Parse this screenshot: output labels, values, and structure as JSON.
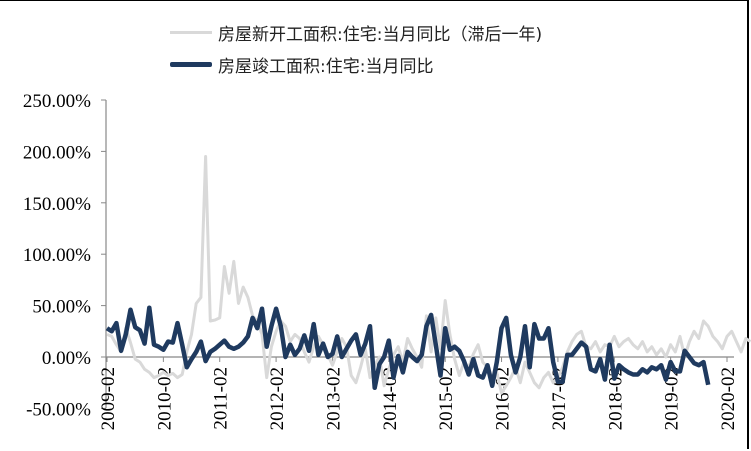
{
  "legend": {
    "series_a": "房屋新开工面积:住宅:当月同比（滞后一年)",
    "series_b": "房屋竣工面积:住宅:当月同比"
  },
  "colors": {
    "series_a": "#d9d9d9",
    "series_b": "#1f3a5f",
    "axis": "#888888"
  },
  "chart_data": {
    "type": "line",
    "title": "",
    "xlabel": "",
    "ylabel": "",
    "ylim": [
      -0.5,
      2.5
    ],
    "y_ticks": [
      "250.00%",
      "200.00%",
      "150.00%",
      "100.00%",
      "50.00%",
      "0.00%",
      "-50.00%"
    ],
    "x_ticks": [
      "2009-02",
      "2010-02",
      "2011-02",
      "2012-02",
      "2013-02",
      "2014-02",
      "2015-02",
      "2016-02",
      "2017-02",
      "2018-02",
      "2019-02",
      "2020-02"
    ],
    "legend_position": "top",
    "grid": false,
    "series": [
      {
        "name": "房屋新开工面积:住宅:当月同比（滞后一年)",
        "start": "2009-02",
        "values": [
          0.22,
          0.2,
          0.12,
          0.05,
          0.28,
          0.14,
          -0.02,
          -0.05,
          -0.12,
          -0.15,
          -0.2,
          -0.18,
          -0.15,
          -0.18,
          -0.16,
          -0.2,
          -0.17,
          0.05,
          0.22,
          0.52,
          0.58,
          1.95,
          0.35,
          0.36,
          0.38,
          0.88,
          0.62,
          0.93,
          0.52,
          0.68,
          0.58,
          0.4,
          0.35,
          0.22,
          -0.2,
          0.1,
          0.25,
          0.35,
          0.3,
          0.15,
          0.22,
          0.18,
          0.05,
          -0.05,
          0.1,
          0.2,
          0.12,
          0.02,
          -0.08,
          0.05,
          0.18,
          0.1,
          -0.18,
          -0.25,
          -0.1,
          0.08,
          -0.2,
          -0.08,
          0.0,
          -0.28,
          -0.12,
          0.02,
          0.1,
          -0.05,
          0.18,
          0.08,
          0.0,
          -0.1,
          0.4,
          0.05,
          0.38,
          0.08,
          0.55,
          0.22,
          -0.02,
          -0.18,
          -0.05,
          -0.1,
          0.03,
          0.12,
          -0.05,
          -0.1,
          -0.2,
          -0.15,
          -0.35,
          -0.28,
          -0.2,
          -0.1,
          -0.25,
          -0.05,
          -0.15,
          -0.25,
          -0.3,
          -0.2,
          -0.15,
          -0.25,
          -0.2,
          -0.1,
          0.05,
          0.15,
          0.22,
          0.25,
          0.1,
          0.08,
          0.15,
          0.05,
          0.12,
          0.1,
          0.2,
          0.1,
          0.15,
          0.18,
          0.12,
          0.08,
          0.15,
          0.05,
          0.1,
          0.02,
          0.08,
          0.0,
          0.12,
          0.05,
          0.2,
          0.0,
          0.15,
          0.25,
          0.18,
          0.35,
          0.3,
          0.2,
          0.15,
          0.08,
          0.2,
          0.25,
          0.15,
          0.05,
          0.18,
          0.15
        ]
      },
      {
        "name": "房屋竣工面积:住宅:当月同比",
        "start": "2009-02",
        "values": [
          0.28,
          0.25,
          0.33,
          0.06,
          0.22,
          0.46,
          0.29,
          0.26,
          0.13,
          0.48,
          0.12,
          0.1,
          0.07,
          0.15,
          0.14,
          0.33,
          0.12,
          -0.1,
          -0.02,
          0.05,
          0.15,
          -0.04,
          0.05,
          0.08,
          0.12,
          0.16,
          0.1,
          0.08,
          0.1,
          0.14,
          0.2,
          0.38,
          0.28,
          0.47,
          0.1,
          0.3,
          0.47,
          0.3,
          0.0,
          0.12,
          0.02,
          0.08,
          0.21,
          0.06,
          0.32,
          0.02,
          0.13,
          0.0,
          0.03,
          0.2,
          0.0,
          0.08,
          0.16,
          0.22,
          0.02,
          0.13,
          0.3,
          -0.3,
          -0.07,
          0.0,
          0.16,
          -0.2,
          0.01,
          -0.15,
          0.05,
          0.0,
          -0.04,
          0.02,
          0.3,
          0.41,
          0.12,
          -0.18,
          0.28,
          0.07,
          0.1,
          0.06,
          -0.04,
          -0.17,
          -0.02,
          -0.18,
          -0.2,
          -0.08,
          -0.28,
          -0.05,
          0.28,
          0.38,
          0.02,
          -0.15,
          0.0,
          0.3,
          -0.1,
          0.32,
          0.18,
          0.18,
          0.28,
          -0.05,
          -0.24,
          -0.24,
          0.02,
          0.02,
          0.08,
          0.14,
          0.1,
          -0.12,
          -0.14,
          -0.02,
          -0.22,
          0.12,
          -0.21,
          -0.08,
          -0.12,
          -0.15,
          -0.17,
          -0.17,
          -0.12,
          -0.15,
          -0.1,
          -0.12,
          -0.08,
          -0.22,
          -0.05,
          -0.14,
          -0.14,
          0.06,
          0.0,
          -0.06,
          -0.08,
          -0.05,
          -0.27
        ]
      }
    ]
  }
}
